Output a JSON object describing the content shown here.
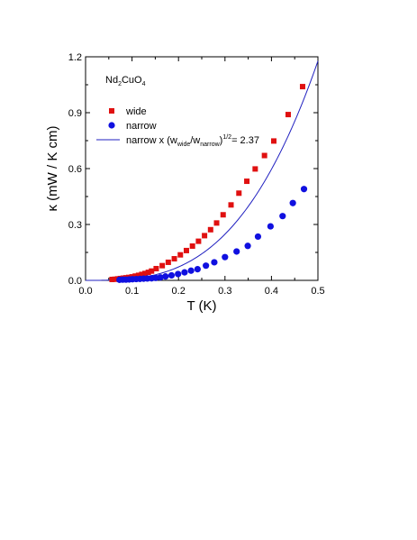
{
  "chart_data": {
    "type": "scatter",
    "xlabel": "T (K)",
    "ylabel": "κ (mW / K cm)",
    "xlim": [
      0.0,
      0.5
    ],
    "ylim": [
      0.0,
      1.2
    ],
    "xticks": [
      "0.0",
      "0.1",
      "0.2",
      "0.3",
      "0.4",
      "0.5"
    ],
    "yticks": [
      "0.0",
      "0.3",
      "0.6",
      "0.9",
      "1.2"
    ],
    "xtick_values": [
      0.0,
      0.1,
      0.2,
      0.3,
      0.4,
      0.5
    ],
    "ytick_values": [
      0.0,
      0.3,
      0.6,
      0.9,
      1.2
    ],
    "grid": false,
    "annotation": {
      "prefix": "Nd",
      "sub1": "2",
      "mid": "CuO",
      "sub2": "4"
    },
    "legend_position": "top-left",
    "series": [
      {
        "name": "wide",
        "marker": "square",
        "color": "#e01010",
        "x": [
          0.057,
          0.063,
          0.069,
          0.075,
          0.081,
          0.087,
          0.093,
          0.1,
          0.107,
          0.114,
          0.121,
          0.128,
          0.135,
          0.142,
          0.152,
          0.165,
          0.178,
          0.191,
          0.204,
          0.217,
          0.23,
          0.243,
          0.256,
          0.269,
          0.282,
          0.296,
          0.313,
          0.33,
          0.347,
          0.365,
          0.385,
          0.405,
          0.436,
          0.467
        ],
        "y": [
          0.005,
          0.006,
          0.008,
          0.01,
          0.012,
          0.014,
          0.016,
          0.019,
          0.023,
          0.027,
          0.032,
          0.037,
          0.043,
          0.05,
          0.063,
          0.079,
          0.097,
          0.116,
          0.137,
          0.16,
          0.184,
          0.21,
          0.24,
          0.272,
          0.308,
          0.352,
          0.405,
          0.468,
          0.532,
          0.598,
          0.67,
          0.748,
          0.89,
          1.04
        ]
      },
      {
        "name": "narrow",
        "marker": "circle",
        "color": "#1010e0",
        "x": [
          0.073,
          0.08,
          0.087,
          0.094,
          0.101,
          0.109,
          0.117,
          0.125,
          0.133,
          0.142,
          0.151,
          0.161,
          0.172,
          0.185,
          0.199,
          0.213,
          0.227,
          0.241,
          0.259,
          0.277,
          0.3,
          0.325,
          0.349,
          0.371,
          0.398,
          0.424,
          0.446,
          0.47
        ],
        "y": [
          0.003,
          0.004,
          0.004,
          0.005,
          0.006,
          0.007,
          0.008,
          0.009,
          0.01,
          0.011,
          0.013,
          0.016,
          0.021,
          0.027,
          0.034,
          0.043,
          0.052,
          0.06,
          0.079,
          0.097,
          0.125,
          0.155,
          0.185,
          0.235,
          0.29,
          0.345,
          0.415,
          0.49
        ]
      },
      {
        "name_prefix": "narrow x (w",
        "name_sub1": "wide",
        "name_mid": "/w",
        "name_sub2": "narrow",
        "name_mid2": ")",
        "name_sup": "1/2",
        "name_suffix": "= 2.37",
        "marker": "line",
        "color": "#2020c0",
        "function": "y = 9.75 * x^3.05"
      }
    ]
  }
}
